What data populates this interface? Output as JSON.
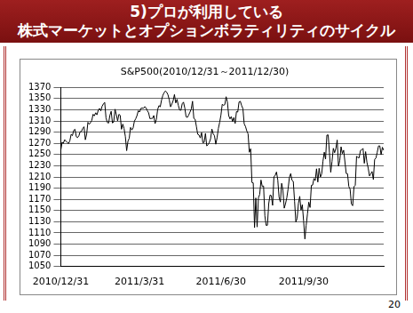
{
  "header": {
    "lines": [
      "5)プロが利用している",
      "株式マーケットとオプションボラティリティのサイクル"
    ]
  },
  "page_number": "20",
  "chart_data": {
    "type": "line",
    "title": "S&P500(2010/12/31～2011/12/30)",
    "color": "#000000",
    "grid": true,
    "ylim": [
      1050,
      1370
    ],
    "yticks": [
      1050,
      1070,
      1090,
      1110,
      1130,
      1150,
      1170,
      1190,
      1210,
      1230,
      1250,
      1270,
      1290,
      1310,
      1330,
      1350,
      1370
    ],
    "categories": [
      "2010/12/31",
      null,
      null,
      null,
      null,
      null,
      null,
      null,
      null,
      null,
      null,
      null,
      null,
      null,
      null,
      null,
      null,
      null,
      null,
      null,
      null,
      null,
      null,
      null,
      null,
      null,
      null,
      null,
      null,
      null,
      null,
      null,
      null,
      null,
      null,
      null,
      null,
      null,
      null,
      null,
      null,
      null,
      null,
      null,
      null,
      null,
      null,
      null,
      null,
      null,
      null,
      null,
      null,
      null,
      null,
      null,
      null,
      null,
      null,
      null,
      null,
      "2011/3/31",
      null,
      null,
      null,
      null,
      null,
      null,
      null,
      null,
      null,
      null,
      null,
      null,
      null,
      null,
      null,
      null,
      null,
      null,
      null,
      null,
      null,
      null,
      null,
      null,
      null,
      null,
      null,
      null,
      null,
      null,
      null,
      null,
      null,
      null,
      null,
      null,
      null,
      null,
      null,
      null,
      null,
      null,
      null,
      null,
      null,
      null,
      null,
      null,
      null,
      null,
      null,
      null,
      null,
      null,
      null,
      null,
      null,
      null,
      null,
      null,
      null,
      null,
      "2011/6/30",
      null,
      null,
      null,
      null,
      null,
      null,
      null,
      null,
      null,
      null,
      null,
      null,
      null,
      null,
      null,
      null,
      null,
      null,
      null,
      null,
      null,
      null,
      null,
      null,
      null,
      null,
      null,
      null,
      null,
      null,
      null,
      null,
      null,
      null,
      null,
      null,
      null,
      null,
      null,
      null,
      null,
      null,
      null,
      null,
      null,
      null,
      null,
      null,
      null,
      null,
      null,
      null,
      null,
      null,
      null,
      null,
      null,
      null,
      null,
      null,
      null,
      null,
      null,
      "2011/9/30",
      null,
      null,
      null,
      null,
      null,
      null,
      null,
      null,
      null,
      null,
      null,
      null,
      null,
      null,
      null,
      null,
      null,
      null,
      null,
      null,
      null,
      null,
      null,
      null,
      null,
      null,
      null,
      null,
      null,
      null,
      null,
      null,
      null,
      null,
      null,
      null,
      null,
      null,
      null,
      null,
      null,
      null,
      null,
      null,
      null,
      null,
      null,
      null,
      null,
      null,
      null,
      null,
      null,
      null,
      null,
      null,
      null,
      null,
      null,
      null,
      null,
      null
    ],
    "values": [
      1257.64,
      1271.87,
      1270.2,
      1276.56,
      1273.85,
      1271.5,
      1269.75,
      1274.48,
      1285.96,
      1283.76,
      1293.24,
      1295.02,
      1281.92,
      1280.26,
      1283.35,
      1290.84,
      1291.18,
      1296.63,
      1299.54,
      1276.34,
      1286.12,
      1307.59,
      1304.03,
      1307.1,
      1310.87,
      1321.87,
      1319.05,
      1324.57,
      1320.88,
      1329.15,
      1332.32,
      1328.01,
      1336.32,
      1340.43,
      1343.01,
      1315.44,
      1307.4,
      1306.1,
      1319.88,
      1327.22,
      1306.33,
      1308.44,
      1330.97,
      1321.15,
      1310.13,
      1321.82,
      1320.02,
      1295.11,
      1304.28,
      1296.39,
      1281.87,
      1256.88,
      1273.72,
      1279.21,
      1298.38,
      1293.77,
      1297.54,
      1309.66,
      1313.8,
      1319.44,
      1328.26,
      1325.83,
      1332.41,
      1332.87,
      1332.63,
      1335.54,
      1333.51,
      1328.17,
      1324.46,
      1314.16,
      1314.41,
      1314.52,
      1319.68,
      1305.14,
      1312.62,
      1330.36,
      1337.38,
      1335.25,
      1347.24,
      1355.66,
      1360.48,
      1363.61,
      1361.22,
      1356.62,
      1347.32,
      1335.1,
      1340.2,
      1346.29,
      1357.16,
      1342.08,
      1348.65,
      1337.77,
      1329.47,
      1328.98,
      1340.68,
      1343.6,
      1333.27,
      1317.37,
      1316.28,
      1320.47,
      1325.69,
      1331.1,
      1345.2,
      1314.55,
      1312.94,
      1300.16,
      1286.17,
      1284.94,
      1279.56,
      1289.0,
      1270.98,
      1271.83,
      1287.87,
      1265.42,
      1267.64,
      1271.5,
      1278.36,
      1295.52,
      1287.14,
      1283.5,
      1268.45,
      1280.1,
      1296.67,
      1307.41,
      1320.64,
      1339.67,
      1337.88,
      1339.22,
      1353.22,
      1343.8,
      1319.49,
      1313.64,
      1317.72,
      1308.87,
      1316.14,
      1305.44,
      1326.73,
      1325.84,
      1343.8,
      1345.02,
      1337.43,
      1331.94,
      1304.89,
      1300.12,
      1292.28,
      1286.94,
      1254.05,
      1260.34,
      1200.07,
      1199.38,
      1119.46,
      1172.53,
      1120.76,
      1172.64,
      1178.81,
      1204.49,
      1192.76,
      1193.89,
      1140.65,
      1123.53,
      1123.82,
      1162.35,
      1177.6,
      1176.8,
      1159.27,
      1210.08,
      1212.92,
      1218.89,
      1204.42,
      1173.97,
      1165.24,
      1198.62,
      1185.9,
      1154.23,
      1162.27,
      1172.87,
      1188.68,
      1209.11,
      1216.01,
      1204.09,
      1202.09,
      1166.76,
      1129.56,
      1136.43,
      1162.95,
      1175.38,
      1151.06,
      1160.4,
      1131.42,
      1099.23,
      1123.95,
      1144.03,
      1164.97,
      1155.46,
      1194.89,
      1195.54,
      1207.25,
      1203.66,
      1224.58,
      1200.86,
      1225.38,
      1209.88,
      1215.39,
      1238.25,
      1254.19,
      1242.0,
      1284.59,
      1285.09,
      1253.3,
      1218.28,
      1237.9,
      1261.15,
      1253.23,
      1261.12,
      1275.92,
      1229.1,
      1239.7,
      1263.85,
      1251.78,
      1257.81,
      1236.91,
      1216.13,
      1215.65,
      1192.98,
      1188.04,
      1161.79,
      1158.67,
      1192.55,
      1195.19,
      1246.96,
      1244.58,
      1244.28,
      1257.08,
      1258.47,
      1261.01,
      1234.35,
      1255.19,
      1236.47,
      1225.73,
      1211.82,
      1215.75,
      1219.66,
      1205.35,
      1241.3,
      1243.72,
      1254.0,
      1265.33,
      1265.43,
      1249.64,
      1263.02,
      1257.6
    ]
  }
}
